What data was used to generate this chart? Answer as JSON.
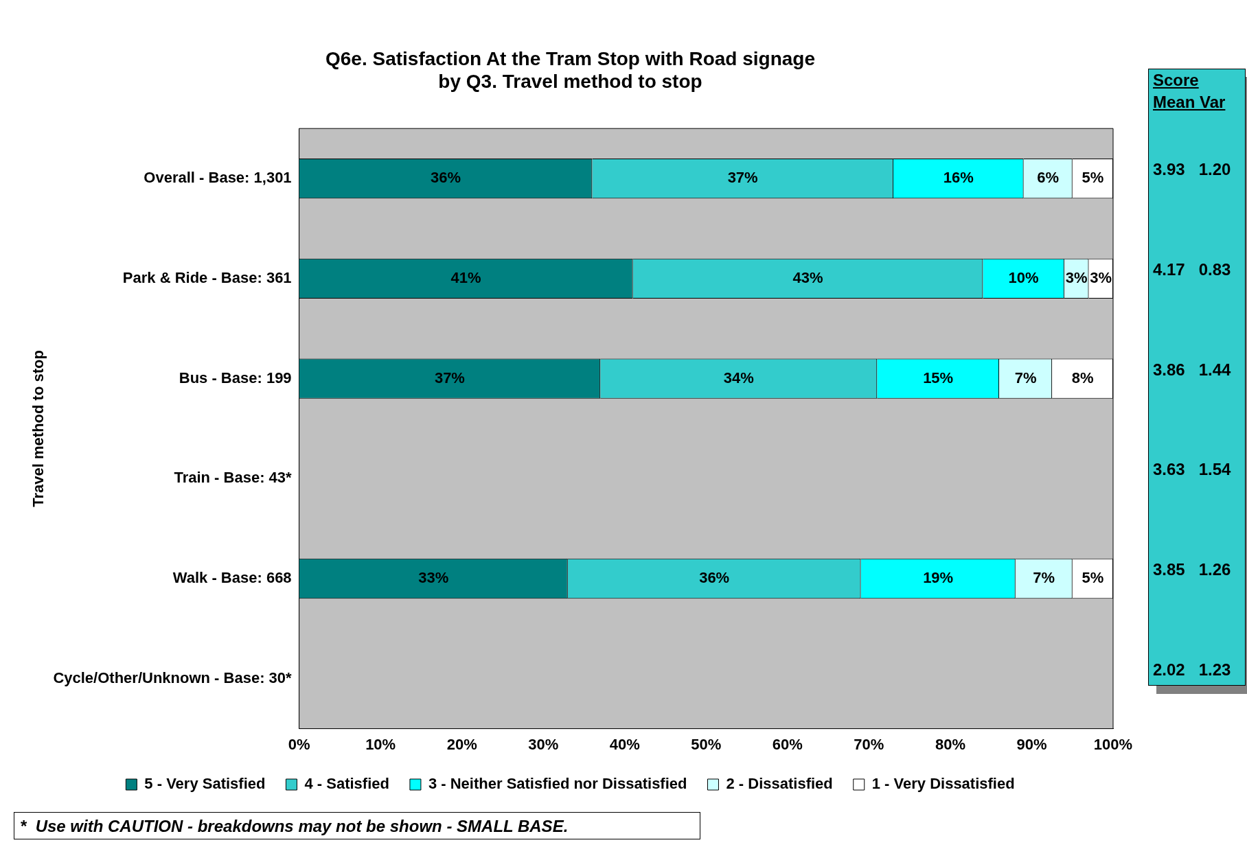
{
  "chart_data": [
    {
      "type": "bar",
      "orientation": "horizontal",
      "stacked": true,
      "title": "Q6e. Satisfaction At the Tram Stop with Road signage\nby Q3. Travel method to stop",
      "ylabel": "Travel method to stop",
      "categories": [
        "Overall - Base: 1,301",
        "Park & Ride - Base: 361",
        "Bus - Base: 199",
        "Train - Base: 43*",
        "Walk - Base: 668",
        "Cycle/Other/Unknown - Base: 30*"
      ],
      "series": [
        {
          "name": "5 - Very Satisfied",
          "color": "#008080",
          "values": [
            36,
            41,
            37,
            null,
            33,
            null
          ],
          "value_labels": [
            "36%",
            "41%",
            "37%",
            null,
            "33%",
            null
          ]
        },
        {
          "name": "4 - Satisfied",
          "color": "#33cccc",
          "values": [
            37,
            43,
            34,
            null,
            36,
            null
          ],
          "value_labels": [
            "37%",
            "43%",
            "34%",
            null,
            "36%",
            null
          ]
        },
        {
          "name": "3 - Neither Satisfied nor Dissatisfied",
          "color": "#00ffff",
          "values": [
            16,
            10,
            15,
            null,
            19,
            null
          ],
          "value_labels": [
            "16%",
            "10%",
            "15%",
            null,
            "19%",
            null
          ]
        },
        {
          "name": "2 - Dissatisfied",
          "color": "#ccffff",
          "values": [
            6,
            3,
            6.5,
            null,
            7,
            null
          ],
          "value_labels": [
            "6%",
            "3%",
            "7%",
            null,
            "7%",
            null
          ]
        },
        {
          "name": "1 - Very Dissatisfied",
          "color": "#ffffff",
          "values": [
            5,
            3,
            7.5,
            null,
            5,
            null
          ],
          "value_labels": [
            "5%",
            "3%",
            "8%",
            null,
            "5%",
            null
          ]
        }
      ],
      "xlim": [
        0,
        100
      ],
      "xticks": [
        {
          "value": 0,
          "label": "0%"
        },
        {
          "value": 10,
          "label": "10%"
        },
        {
          "value": 20,
          "label": "20%"
        },
        {
          "value": 30,
          "label": "30%"
        },
        {
          "value": 40,
          "label": "40%"
        },
        {
          "value": 50,
          "label": "50%"
        },
        {
          "value": 60,
          "label": "60%"
        },
        {
          "value": 70,
          "label": "70%"
        },
        {
          "value": 80,
          "label": "80%"
        },
        {
          "value": 90,
          "label": "90%"
        },
        {
          "value": 100,
          "label": "100%"
        }
      ],
      "grid": false,
      "legend": "bottom",
      "annotations": [
        "*  Use with CAUTION - breakdowns may not be shown - SMALL BASE."
      ]
    },
    {
      "type": "other",
      "title": "Score",
      "subtitle": "Mean Var",
      "annotations": [
        "3.93   1.20",
        "4.17   0.83",
        "3.86   1.44",
        "3.63   1.54",
        "3.85   1.26",
        "2.02   1.23"
      ]
    }
  ]
}
